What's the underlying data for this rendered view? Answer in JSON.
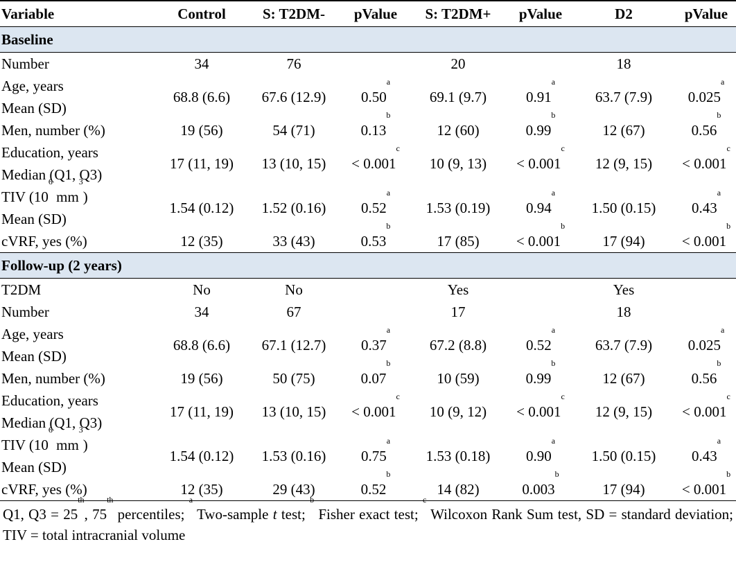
{
  "headers": [
    "Variable",
    "Control",
    "S: T2DM-",
    "pValue",
    "S: T2DM+",
    "pValue",
    "D2",
    "pValue"
  ],
  "baseline": {
    "title": "Baseline",
    "rows": [
      {
        "label1": "Number",
        "label2": "",
        "cells": [
          {
            "v": "34"
          },
          {
            "v": "76"
          },
          {
            "v": "",
            "s": ""
          },
          {
            "v": "20"
          },
          {
            "v": "",
            "s": ""
          },
          {
            "v": "18"
          },
          {
            "v": "",
            "s": ""
          }
        ]
      },
      {
        "label1": "Age, years",
        "label2": "Mean (SD)",
        "cells": [
          {
            "v": "68.8 (6.6)"
          },
          {
            "v": "67.6 (12.9)"
          },
          {
            "v": "0.50",
            "s": "a"
          },
          {
            "v": "69.1 (9.7)"
          },
          {
            "v": "0.91",
            "s": "a"
          },
          {
            "v": "63.7 (7.9)"
          },
          {
            "v": "0.025",
            "s": "a"
          }
        ]
      },
      {
        "label1": "Men, number (%)",
        "label2": "",
        "cells": [
          {
            "v": "19 (56)"
          },
          {
            "v": "54 (71)"
          },
          {
            "v": "0.13",
            "s": "b"
          },
          {
            "v": "12 (60)"
          },
          {
            "v": "0.99",
            "s": "b"
          },
          {
            "v": "12 (67)"
          },
          {
            "v": "0.56",
            "s": "b"
          }
        ]
      },
      {
        "label1": "Education, years",
        "label2": "Median (Q1, Q3)",
        "cells": [
          {
            "v": "17 (11, 19)"
          },
          {
            "v": "13 (10, 15)"
          },
          {
            "v": "< 0.001",
            "s": "c"
          },
          {
            "v": "10 (9, 13)"
          },
          {
            "v": "< 0.001",
            "s": "c"
          },
          {
            "v": "12 (9, 15)"
          },
          {
            "v": "< 0.001",
            "s": "c"
          }
        ]
      },
      {
        "label1": "TIV (10",
        "label1_sup": "6",
        "label1_tail": " mm",
        "label1_sup2": "3",
        "label1_end": ")",
        "label2": "Mean (SD)",
        "cells": [
          {
            "v": "1.54 (0.12)"
          },
          {
            "v": "1.52 (0.16)"
          },
          {
            "v": "0.52",
            "s": "a"
          },
          {
            "v": "1.53 (0.19)"
          },
          {
            "v": "0.94",
            "s": "a"
          },
          {
            "v": "1.50 (0.15)"
          },
          {
            "v": "0.43",
            "s": "a"
          }
        ]
      },
      {
        "label1": "cVRF, yes (%)",
        "label2": "",
        "cells": [
          {
            "v": "12 (35)"
          },
          {
            "v": "33 (43)"
          },
          {
            "v": "0.53",
            "s": "b"
          },
          {
            "v": "17 (85)"
          },
          {
            "v": "< 0.001",
            "s": "b"
          },
          {
            "v": "17 (94)"
          },
          {
            "v": "< 0.001",
            "s": "b"
          }
        ]
      }
    ]
  },
  "followup": {
    "title": "Follow-up (2 years)",
    "rows": [
      {
        "label1": "T2DM",
        "label2": "",
        "cells": [
          {
            "v": "No"
          },
          {
            "v": "No"
          },
          {
            "v": "",
            "s": ""
          },
          {
            "v": "Yes"
          },
          {
            "v": "",
            "s": ""
          },
          {
            "v": "Yes"
          },
          {
            "v": "",
            "s": ""
          }
        ]
      },
      {
        "label1": "Number",
        "label2": "",
        "cells": [
          {
            "v": "34"
          },
          {
            "v": "67"
          },
          {
            "v": "",
            "s": ""
          },
          {
            "v": "17"
          },
          {
            "v": "",
            "s": ""
          },
          {
            "v": "18"
          },
          {
            "v": "",
            "s": ""
          }
        ]
      },
      {
        "label1": "Age, years",
        "label2": "Mean (SD)",
        "cells": [
          {
            "v": "68.8 (6.6)"
          },
          {
            "v": "67.1 (12.7)"
          },
          {
            "v": "0.37",
            "s": "a"
          },
          {
            "v": "67.2 (8.8)"
          },
          {
            "v": "0.52",
            "s": "a"
          },
          {
            "v": "63.7 (7.9)"
          },
          {
            "v": "0.025",
            "s": "a"
          }
        ]
      },
      {
        "label1": "Men, number (%)",
        "label2": "",
        "cells": [
          {
            "v": "19 (56)"
          },
          {
            "v": "50 (75)"
          },
          {
            "v": "0.07",
            "s": "b"
          },
          {
            "v": "10 (59)"
          },
          {
            "v": "0.99",
            "s": "b"
          },
          {
            "v": "12 (67)"
          },
          {
            "v": "0.56",
            "s": "b"
          }
        ]
      },
      {
        "label1": "Education, years",
        "label2": "Median (Q1, Q3)",
        "cells": [
          {
            "v": "17 (11, 19)"
          },
          {
            "v": "13 (10, 15)"
          },
          {
            "v": "< 0.001",
            "s": "c"
          },
          {
            "v": "10 (9, 12)"
          },
          {
            "v": "< 0.001",
            "s": "c"
          },
          {
            "v": "12 (9, 15)"
          },
          {
            "v": "< 0.001",
            "s": "c"
          }
        ]
      },
      {
        "label1": "TIV (10",
        "label1_sup": "6",
        "label1_tail": " mm",
        "label1_sup2": "3",
        "label1_end": ")",
        "label2": "Mean (SD)",
        "cells": [
          {
            "v": "1.54 (0.12)"
          },
          {
            "v": "1.53 (0.16)"
          },
          {
            "v": "0.75",
            "s": "a"
          },
          {
            "v": "1.53 (0.18)"
          },
          {
            "v": "0.90",
            "s": "a"
          },
          {
            "v": "1.50 (0.15)"
          },
          {
            "v": "0.43",
            "s": "a"
          }
        ]
      },
      {
        "label1": "cVRF, yes (%)",
        "label2": "",
        "cells": [
          {
            "v": "12 (35)"
          },
          {
            "v": "29 (43)"
          },
          {
            "v": "0.52",
            "s": "b"
          },
          {
            "v": "14 (82)"
          },
          {
            "v": "0.003",
            "s": "b"
          },
          {
            "v": "17 (94)"
          },
          {
            "v": "< 0.001",
            "s": "b"
          }
        ]
      }
    ]
  },
  "footnote": {
    "p1": "Q1, Q3 = 25",
    "sup_th1": "th",
    "p2": ", 75",
    "sup_th2": "th",
    "p3": " percentiles; ",
    "sup_a": "a",
    "p4": " Two-sample ",
    "t": "t",
    "p5": " test; ",
    "sup_b": "b",
    "p6": " Fisher exact test; ",
    "sup_c": "c",
    "p7": " Wilcoxon Rank Sum test, SD = standard deviation; TIV = total intracranial volume"
  }
}
